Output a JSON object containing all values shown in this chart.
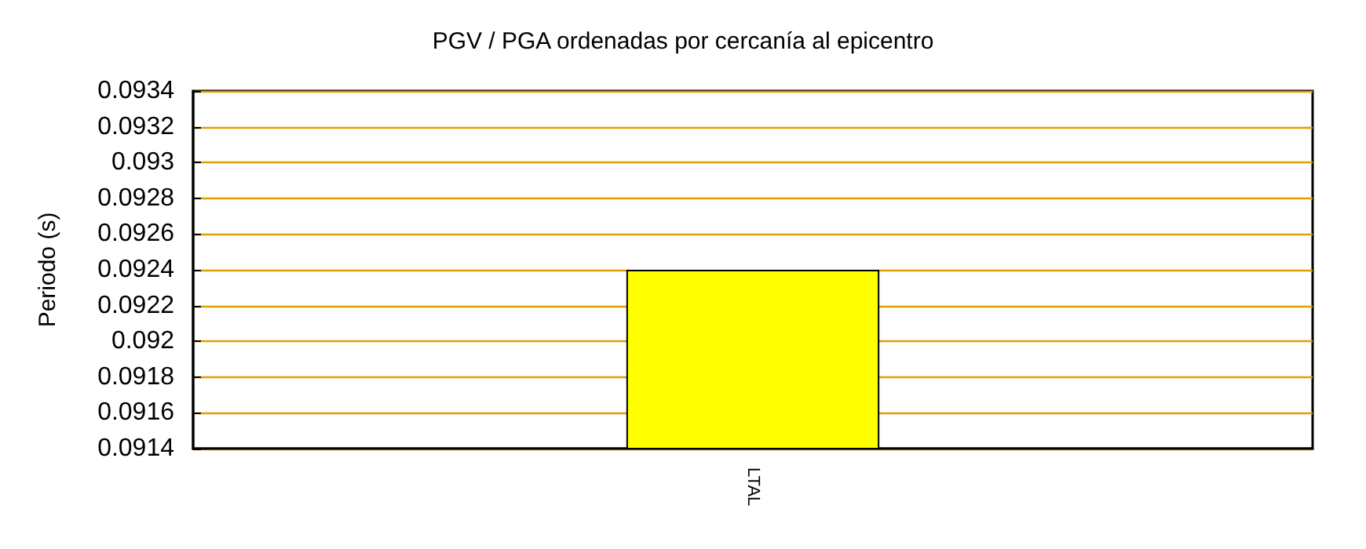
{
  "chart_data": {
    "type": "bar",
    "title": "PGV / PGA ordenadas por cercanía al epicentro",
    "ylabel": "Periodo (s)",
    "categories": [
      "LTAL"
    ],
    "values": [
      0.0924
    ],
    "color": "#ffff00",
    "ylim": [
      0.0914,
      0.0934
    ],
    "yticks": [
      0.0914,
      0.0916,
      0.0918,
      0.092,
      0.0922,
      0.0924,
      0.0926,
      0.0928,
      0.093,
      0.0932,
      0.0934
    ],
    "grid": "y"
  }
}
